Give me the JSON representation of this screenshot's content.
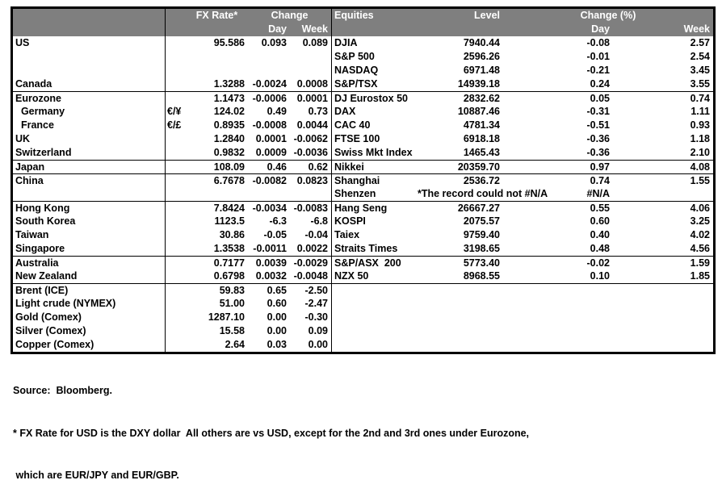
{
  "colors": {
    "header_bg": "#7f7f7f",
    "header_text": "#ffffff",
    "border": "#000000",
    "text": "#000000",
    "background": "#ffffff"
  },
  "fx_header": {
    "rate_label": "FX Rate*",
    "change_label": "Change",
    "day_label": "Day",
    "week_label": "Week"
  },
  "eq_header": {
    "name_label": "Equities",
    "level_label": "Level",
    "change_label": "Change (%)",
    "day_label": "Day",
    "week_label": "Week"
  },
  "rows": [
    {
      "fx_name": "US",
      "fx_sym": "",
      "fx_rate": "95.586",
      "fx_day": "0.093",
      "fx_week": "0.089",
      "eq_name": "DJIA",
      "eq_level": "7940.44",
      "eq_day": "-0.08",
      "eq_week": "2.57"
    },
    {
      "fx_name": "",
      "fx_sym": "",
      "fx_rate": "",
      "fx_day": "",
      "fx_week": "",
      "eq_name": "S&P 500",
      "eq_level": "2596.26",
      "eq_day": "-0.01",
      "eq_week": "2.54"
    },
    {
      "fx_name": "",
      "fx_sym": "",
      "fx_rate": "",
      "fx_day": "",
      "fx_week": "",
      "eq_name": "NASDAQ",
      "eq_level": "6971.48",
      "eq_day": "-0.21",
      "eq_week": "3.45"
    },
    {
      "fx_name": "Canada",
      "fx_sym": "",
      "fx_rate": "1.3288",
      "fx_day": "-0.0024",
      "fx_week": "0.0008",
      "eq_name": "S&P/TSX",
      "eq_level": "14939.18",
      "eq_day": "0.24",
      "eq_week": "3.55"
    },
    {
      "sep": true,
      "fx_name": "Eurozone",
      "fx_sym": "",
      "fx_rate": "1.1473",
      "fx_day": "-0.0006",
      "fx_week": "0.0001",
      "eq_name": "DJ Eurostox 50",
      "eq_level": "2832.62",
      "eq_day": "0.05",
      "eq_week": "0.74"
    },
    {
      "fx_name": "  Germany",
      "fx_sym": "€/¥",
      "fx_rate": "124.02",
      "fx_day": "0.49",
      "fx_week": "0.73",
      "eq_name": "DAX",
      "eq_level": "10887.46",
      "eq_day": "-0.31",
      "eq_week": "1.11"
    },
    {
      "fx_name": "  France",
      "fx_sym": "€/£",
      "fx_rate": "0.8935",
      "fx_day": "-0.0008",
      "fx_week": "0.0044",
      "eq_name": "CAC 40",
      "eq_level": "4781.34",
      "eq_day": "-0.51",
      "eq_week": "0.93"
    },
    {
      "fx_name": "UK",
      "fx_sym": "",
      "fx_rate": "1.2840",
      "fx_day": "0.0001",
      "fx_week": "-0.0062",
      "eq_name": "FTSE 100",
      "eq_level": "6918.18",
      "eq_day": "-0.36",
      "eq_week": "1.18"
    },
    {
      "fx_name": "Switzerland",
      "fx_sym": "",
      "fx_rate": "0.9832",
      "fx_day": "0.0009",
      "fx_week": "-0.0036",
      "eq_name": "Swiss Mkt Index",
      "eq_level": "1465.43",
      "eq_day": "-0.36",
      "eq_week": "2.10"
    },
    {
      "sep": true,
      "fx_name": "Japan",
      "fx_sym": "",
      "fx_rate": "108.09",
      "fx_day": "0.46",
      "fx_week": "0.62",
      "eq_name": "Nikkei",
      "eq_level": "20359.70",
      "eq_day": "0.97",
      "eq_week": "4.08"
    },
    {
      "sep": true,
      "fx_name": "China",
      "fx_sym": "",
      "fx_rate": "6.7678",
      "fx_day": "-0.0082",
      "fx_week": "0.0823",
      "eq_name": "Shanghai",
      "eq_level": "2536.72",
      "eq_day": "0.74",
      "eq_week": "1.55"
    },
    {
      "fx_name": "",
      "fx_sym": "",
      "fx_rate": "",
      "fx_day": "",
      "fx_week": "",
      "eq_name": "Shenzen",
      "eq_level": "*The record could not #N/A",
      "eq_level_left": true,
      "eq_day": "#N/A",
      "eq_week": ""
    },
    {
      "sep": true,
      "fx_name": "Hong Kong",
      "fx_sym": "",
      "fx_rate": "7.8424",
      "fx_day": "-0.0034",
      "fx_week": "-0.0083",
      "eq_name": "Hang Seng",
      "eq_level": "26667.27",
      "eq_day": "0.55",
      "eq_week": "4.06"
    },
    {
      "fx_name": "South Korea",
      "fx_sym": "",
      "fx_rate": "1123.5",
      "fx_day": "-6.3",
      "fx_week": "-6.8",
      "eq_name": "KOSPI",
      "eq_level": "2075.57",
      "eq_day": "0.60",
      "eq_week": "3.25"
    },
    {
      "fx_name": "Taiwan",
      "fx_sym": "",
      "fx_rate": "30.86",
      "fx_day": "-0.05",
      "fx_week": "-0.04",
      "eq_name": "Taiex",
      "eq_level": "9759.40",
      "eq_day": "0.40",
      "eq_week": "4.02"
    },
    {
      "fx_name": "Singapore",
      "fx_sym": "",
      "fx_rate": "1.3538",
      "fx_day": "-0.0011",
      "fx_week": "0.0022",
      "eq_name": "Straits Times",
      "eq_level": "3198.65",
      "eq_day": "0.48",
      "eq_week": "4.56"
    },
    {
      "sep": true,
      "fx_name": "Australia",
      "fx_sym": "",
      "fx_rate": "0.7177",
      "fx_day": "0.0039",
      "fx_week": "-0.0029",
      "eq_name": "S&P/ASX  200",
      "eq_level": "5773.40",
      "eq_day": "-0.02",
      "eq_week": "1.59"
    },
    {
      "fx_name": "New Zealand",
      "fx_sym": "",
      "fx_rate": "0.6798",
      "fx_day": "0.0032",
      "fx_week": "-0.0048",
      "eq_name": "NZX 50",
      "eq_level": "8968.55",
      "eq_day": "0.10",
      "eq_week": "1.85"
    },
    {
      "sep": true,
      "fx_name": "Brent (ICE)",
      "fx_sym": "",
      "fx_rate": "59.83",
      "fx_day": "0.65",
      "fx_week": "-2.50",
      "eq_name": "",
      "eq_level": "",
      "eq_day": "",
      "eq_week": ""
    },
    {
      "fx_name": "Light crude (NYMEX)",
      "fx_sym": "",
      "fx_rate": "51.00",
      "fx_day": "0.60",
      "fx_week": "-2.47",
      "eq_name": "",
      "eq_level": "",
      "eq_day": "",
      "eq_week": ""
    },
    {
      "fx_name": "Gold (Comex)",
      "fx_sym": "",
      "fx_rate": "1287.10",
      "fx_day": "0.00",
      "fx_week": "-0.30",
      "eq_name": "",
      "eq_level": "",
      "eq_day": "",
      "eq_week": ""
    },
    {
      "fx_name": "Silver (Comex)",
      "fx_sym": "",
      "fx_rate": "15.58",
      "fx_day": "0.00",
      "fx_week": "0.09",
      "eq_name": "",
      "eq_level": "",
      "eq_day": "",
      "eq_week": ""
    },
    {
      "fx_name": "Copper (Comex)",
      "fx_sym": "",
      "fx_rate": "2.64",
      "fx_day": "0.03",
      "fx_week": "0.00",
      "eq_name": "",
      "eq_level": "",
      "eq_day": "",
      "eq_week": ""
    }
  ],
  "footnotes": {
    "source": "Source:  Bloomberg.",
    "note1": "* FX Rate for USD is the DXY dollar  All others are vs USD, except for the 2nd and 3rd ones under Eurozone,",
    "note2": " which are EUR/JPY and EUR/GBP."
  }
}
